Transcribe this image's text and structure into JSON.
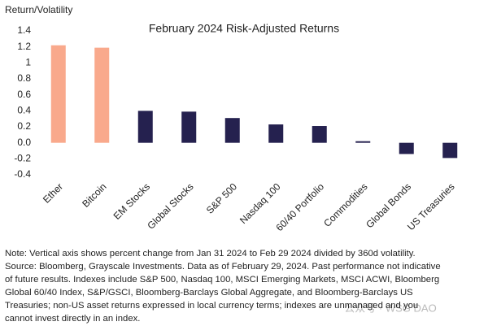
{
  "chart_data": {
    "type": "bar",
    "title": "February 2024 Risk-Adjusted Returns",
    "y_label": "Return/Volatility",
    "categories": [
      "Ether",
      "Bitcoin",
      "EM Stocks",
      "Global Stocks",
      "S&P 500",
      "Nasdaq 100",
      "60/40 Portfolio",
      "Commodities",
      "Global Bonds",
      "US Treasuries"
    ],
    "values": [
      1.22,
      1.19,
      0.4,
      0.39,
      0.31,
      0.23,
      0.21,
      0.02,
      -0.14,
      -0.19
    ],
    "colors": [
      "#f9a98c",
      "#f9a98c",
      "#25214f",
      "#25214f",
      "#25214f",
      "#25214f",
      "#25214f",
      "#25214f",
      "#25214f",
      "#25214f"
    ],
    "ylim": [
      -0.4,
      1.4
    ],
    "yticks": [
      1.4,
      1.2,
      1,
      0.8,
      0.6,
      0.4,
      0.2,
      {
        "value": 0,
        "label": "0.0"
      },
      -0.2,
      -0.4
    ],
    "grid": false
  },
  "note": [
    "Note: Vertical axis shows percent change from Jan 31 2024 to Feb 29 2024 divided by 360d volatility.",
    "Source: Bloomberg, Grayscale Investments. Data as of February 29, 2024. Past performance not indicative",
    "of future results. Indexes include S&P 500, Nasdaq 100, MSCI Emerging Markets, MSCI ACWI, Bloomberg",
    "Global 60/40 Index, S&P/GSCI, Bloomberg-Barclays Global Aggregate, and Bloomberg-Barclays US",
    "Treasuries; non-US asset returns expressed in local currency terms; indexes are unmanaged and you",
    "cannot invest directly in an index."
  ],
  "watermark": "公众号 · WSG DAO"
}
